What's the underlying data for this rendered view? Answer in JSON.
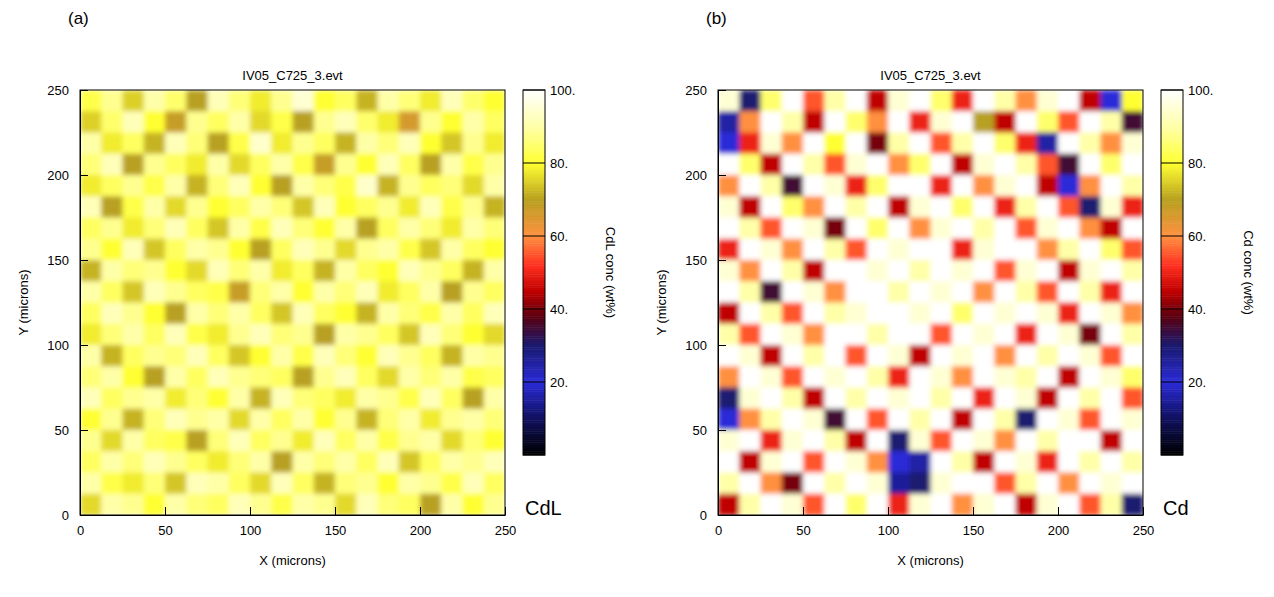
{
  "chart_data": [
    {
      "type": "heatmap",
      "panel_label": "(a)",
      "title": "IV05_C725_3.evt",
      "x_label": "X (microns)",
      "y_label": "Y (microns)",
      "xlim": [
        0,
        250
      ],
      "ylim": [
        0,
        250
      ],
      "xticks": [
        0,
        50,
        100,
        150,
        200,
        250
      ],
      "yticks": [
        0,
        50,
        100,
        150,
        200,
        250
      ],
      "colorbar_label": "CdL conc (wt%)",
      "colorbar_range": [
        0,
        100
      ],
      "colorbar_ticks": [
        {
          "value": 20,
          "label": "20."
        },
        {
          "value": 40,
          "label": "40."
        },
        {
          "value": 60,
          "label": "60."
        },
        {
          "value": 80,
          "label": "80."
        },
        {
          "value": 100,
          "label": "100."
        }
      ],
      "annotation": "CdL",
      "cells": [
        [
          82,
          88,
          75,
          90,
          85,
          70,
          92,
          86,
          78,
          88,
          95,
          80,
          84,
          72,
          90,
          86,
          78,
          92,
          85,
          80
        ],
        [
          75,
          85,
          92,
          80,
          68,
          88,
          84,
          90,
          76,
          82,
          70,
          88,
          92,
          85,
          78,
          66,
          88,
          80,
          90,
          84
        ],
        [
          90,
          78,
          84,
          72,
          92,
          86,
          70,
          82,
          94,
          78,
          88,
          84,
          72,
          90,
          86,
          92,
          80,
          74,
          88,
          78
        ],
        [
          86,
          92,
          70,
          88,
          84,
          78,
          90,
          76,
          84,
          90,
          82,
          68,
          88,
          80,
          92,
          84,
          70,
          90,
          82,
          88
        ],
        [
          78,
          84,
          88,
          82,
          90,
          72,
          86,
          92,
          80,
          70,
          90,
          86,
          82,
          94,
          72,
          88,
          84,
          86,
          76,
          90
        ],
        [
          92,
          70,
          82,
          90,
          76,
          88,
          80,
          84,
          90,
          86,
          74,
          92,
          80,
          84,
          88,
          78,
          92,
          82,
          88,
          72
        ],
        [
          84,
          88,
          78,
          86,
          92,
          84,
          74,
          90,
          82,
          92,
          86,
          80,
          90,
          70,
          84,
          90,
          86,
          78,
          90,
          86
        ],
        [
          88,
          80,
          92,
          74,
          84,
          90,
          88,
          80,
          70,
          84,
          92,
          88,
          76,
          88,
          90,
          82,
          74,
          90,
          84,
          80
        ],
        [
          72,
          90,
          86,
          88,
          80,
          76,
          92,
          86,
          90,
          78,
          84,
          72,
          90,
          84,
          80,
          92,
          88,
          84,
          72,
          90
        ],
        [
          90,
          84,
          74,
          92,
          88,
          84,
          82,
          68,
          86,
          90,
          80,
          90,
          86,
          92,
          78,
          84,
          90,
          70,
          88,
          84
        ],
        [
          84,
          92,
          88,
          80,
          70,
          90,
          86,
          90,
          84,
          74,
          92,
          84,
          80,
          72,
          90,
          86,
          82,
          90,
          84,
          92
        ],
        [
          78,
          86,
          90,
          84,
          92,
          82,
          78,
          88,
          92,
          86,
          88,
          70,
          90,
          88,
          84,
          74,
          92,
          86,
          80,
          76
        ],
        [
          90,
          72,
          84,
          88,
          86,
          92,
          84,
          74,
          80,
          90,
          82,
          92,
          86,
          80,
          92,
          88,
          84,
          72,
          90,
          88
        ],
        [
          86,
          90,
          80,
          70,
          90,
          84,
          92,
          88,
          86,
          84,
          70,
          88,
          92,
          84,
          76,
          90,
          86,
          90,
          82,
          84
        ],
        [
          92,
          84,
          88,
          90,
          78,
          86,
          80,
          90,
          72,
          92,
          86,
          84,
          78,
          90,
          88,
          82,
          92,
          84,
          70,
          90
        ],
        [
          80,
          88,
          72,
          86,
          92,
          88,
          90,
          76,
          90,
          84,
          90,
          80,
          88,
          72,
          86,
          90,
          78,
          88,
          90,
          86
        ],
        [
          88,
          76,
          90,
          84,
          82,
          70,
          86,
          92,
          84,
          88,
          78,
          92,
          84,
          90,
          82,
          88,
          90,
          76,
          86,
          80
        ],
        [
          84,
          90,
          86,
          92,
          88,
          84,
          78,
          86,
          90,
          70,
          90,
          86,
          90,
          84,
          92,
          74,
          84,
          90,
          88,
          92
        ],
        [
          90,
          82,
          78,
          86,
          74,
          92,
          90,
          84,
          76,
          92,
          84,
          72,
          86,
          88,
          80,
          90,
          88,
          82,
          92,
          84
        ],
        [
          76,
          90,
          88,
          80,
          90,
          86,
          84,
          92,
          88,
          82,
          90,
          88,
          76,
          92,
          86,
          84,
          70,
          90,
          80,
          88
        ]
      ]
    },
    {
      "type": "heatmap",
      "panel_label": "(b)",
      "title": "IV05_C725_3.evt",
      "x_label": "X (microns)",
      "y_label": "Y (microns)",
      "xlim": [
        0,
        250
      ],
      "ylim": [
        0,
        250
      ],
      "xticks": [
        0,
        50,
        100,
        150,
        200,
        250
      ],
      "yticks": [
        0,
        50,
        100,
        150,
        200,
        250
      ],
      "colorbar_label": "Cd conc (wt%)",
      "colorbar_range": [
        0,
        100
      ],
      "colorbar_ticks": [
        {
          "value": 20,
          "label": "20."
        },
        {
          "value": 40,
          "label": "40."
        },
        {
          "value": 60,
          "label": "60."
        },
        {
          "value": 80,
          "label": "80."
        },
        {
          "value": 100,
          "label": "100."
        }
      ],
      "annotation": "Cd",
      "cells": [
        [
          95,
          30,
          85,
          100,
          55,
          90,
          100,
          45,
          95,
          100,
          85,
          50,
          100,
          90,
          60,
          95,
          100,
          45,
          20,
          80
        ],
        [
          25,
          60,
          100,
          90,
          45,
          100,
          85,
          60,
          100,
          50,
          95,
          100,
          70,
          45,
          100,
          85,
          55,
          100,
          90,
          35
        ],
        [
          20,
          50,
          95,
          60,
          100,
          80,
          100,
          40,
          90,
          100,
          55,
          90,
          100,
          85,
          50,
          25,
          100,
          90,
          60,
          95
        ],
        [
          100,
          85,
          45,
          100,
          90,
          55,
          95,
          100,
          60,
          85,
          100,
          45,
          95,
          100,
          90,
          55,
          35,
          100,
          85,
          100
        ],
        [
          60,
          100,
          90,
          35,
          100,
          95,
          50,
          85,
          100,
          100,
          50,
          100,
          60,
          95,
          100,
          45,
          20,
          60,
          100,
          90
        ],
        [
          95,
          45,
          100,
          85,
          60,
          100,
          90,
          100,
          45,
          95,
          100,
          85,
          100,
          50,
          90,
          100,
          55,
          30,
          95,
          50
        ],
        [
          100,
          90,
          55,
          100,
          95,
          40,
          100,
          85,
          100,
          60,
          95,
          100,
          90,
          100,
          55,
          95,
          100,
          60,
          45,
          100
        ],
        [
          50,
          100,
          95,
          60,
          100,
          90,
          55,
          100,
          95,
          100,
          100,
          50,
          95,
          100,
          100,
          60,
          90,
          100,
          85,
          55
        ],
        [
          95,
          60,
          100,
          90,
          45,
          100,
          100,
          95,
          100,
          90,
          100,
          95,
          100,
          55,
          95,
          100,
          45,
          95,
          100,
          90
        ],
        [
          100,
          90,
          35,
          100,
          95,
          60,
          100,
          100,
          90,
          100,
          95,
          100,
          60,
          100,
          90,
          55,
          100,
          90,
          50,
          100
        ],
        [
          45,
          100,
          90,
          55,
          100,
          90,
          95,
          100,
          100,
          95,
          100,
          85,
          100,
          95,
          100,
          95,
          50,
          100,
          95,
          60
        ],
        [
          90,
          55,
          100,
          95,
          60,
          100,
          100,
          90,
          100,
          100,
          55,
          100,
          95,
          100,
          50,
          100,
          95,
          40,
          100,
          90
        ],
        [
          100,
          95,
          45,
          100,
          90,
          100,
          55,
          100,
          95,
          45,
          100,
          95,
          100,
          60,
          100,
          90,
          100,
          95,
          55,
          100
        ],
        [
          60,
          100,
          95,
          55,
          100,
          95,
          100,
          90,
          50,
          100,
          95,
          60,
          100,
          95,
          90,
          100,
          45,
          100,
          95,
          85
        ],
        [
          30,
          95,
          100,
          90,
          45,
          100,
          90,
          100,
          95,
          100,
          90,
          100,
          50,
          100,
          95,
          45,
          100,
          90,
          100,
          55
        ],
        [
          20,
          60,
          90,
          100,
          95,
          35,
          100,
          55,
          100,
          90,
          100,
          45,
          100,
          90,
          30,
          100,
          95,
          55,
          100,
          95
        ],
        [
          95,
          100,
          50,
          95,
          100,
          90,
          45,
          100,
          30,
          95,
          55,
          100,
          95,
          60,
          100,
          90,
          100,
          100,
          45,
          100
        ],
        [
          100,
          45,
          95,
          100,
          55,
          100,
          95,
          60,
          20,
          25,
          100,
          90,
          45,
          100,
          95,
          50,
          100,
          90,
          100,
          90
        ],
        [
          90,
          100,
          60,
          40,
          100,
          90,
          100,
          95,
          15,
          30,
          95,
          100,
          100,
          55,
          90,
          100,
          60,
          100,
          95,
          100
        ],
        [
          45,
          90,
          100,
          95,
          55,
          100,
          85,
          100,
          50,
          95,
          100,
          60,
          95,
          100,
          45,
          95,
          100,
          55,
          90,
          30
        ]
      ]
    }
  ]
}
